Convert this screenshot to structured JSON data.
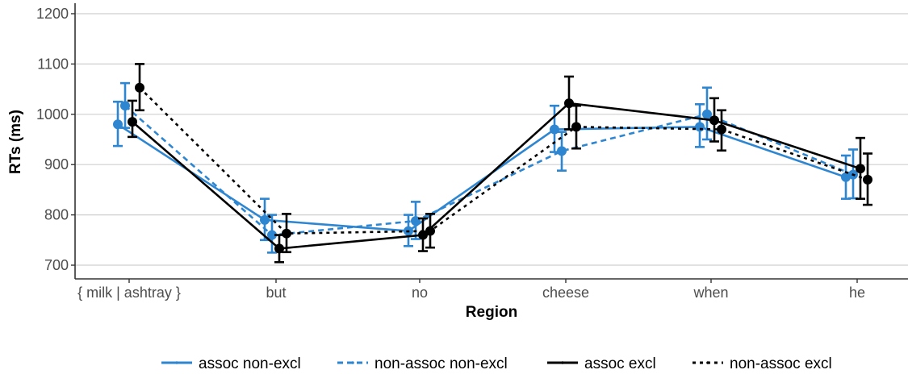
{
  "chart_data": {
    "type": "line",
    "xlabel": "Region",
    "ylabel": "RTs (ms)",
    "ylim": [
      680,
      1220
    ],
    "yticks": [
      700,
      800,
      900,
      1000,
      1100,
      1200
    ],
    "categories": [
      "{ milk | ashtray }",
      "but",
      "no",
      "cheese",
      "when",
      "he"
    ],
    "grid": "horizontal major",
    "legend_position": "bottom",
    "series": [
      {
        "name": "assoc non-excl",
        "color": "#2e86d1",
        "dash": "solid",
        "values": [
          980,
          790,
          768,
          970,
          975,
          875
        ],
        "err_low": [
          937,
          750,
          738,
          925,
          935,
          832
        ],
        "err_high": [
          1025,
          832,
          800,
          1017,
          1020,
          918
        ]
      },
      {
        "name": "non-assoc non-excl",
        "color": "#2e86d1",
        "dash": "dashed",
        "values": [
          1017,
          760,
          788,
          927,
          1000,
          880
        ],
        "err_low": [
          973,
          725,
          752,
          888,
          950,
          833
        ],
        "err_high": [
          1062,
          800,
          826,
          965,
          1053,
          930
        ]
      },
      {
        "name": "assoc excl",
        "color": "#000000",
        "dash": "solid",
        "values": [
          985,
          733,
          760,
          1022,
          988,
          892
        ],
        "err_low": [
          955,
          706,
          728,
          970,
          946,
          832
        ],
        "err_high": [
          1027,
          760,
          793,
          1075,
          1032,
          953
        ]
      },
      {
        "name": "non-assoc excl",
        "color": "#000000",
        "dash": "dotted",
        "values": [
          1053,
          763,
          768,
          975,
          970,
          870
        ],
        "err_low": [
          1008,
          726,
          735,
          932,
          928,
          820
        ],
        "err_high": [
          1100,
          802,
          802,
          1017,
          1008,
          922
        ]
      }
    ]
  }
}
